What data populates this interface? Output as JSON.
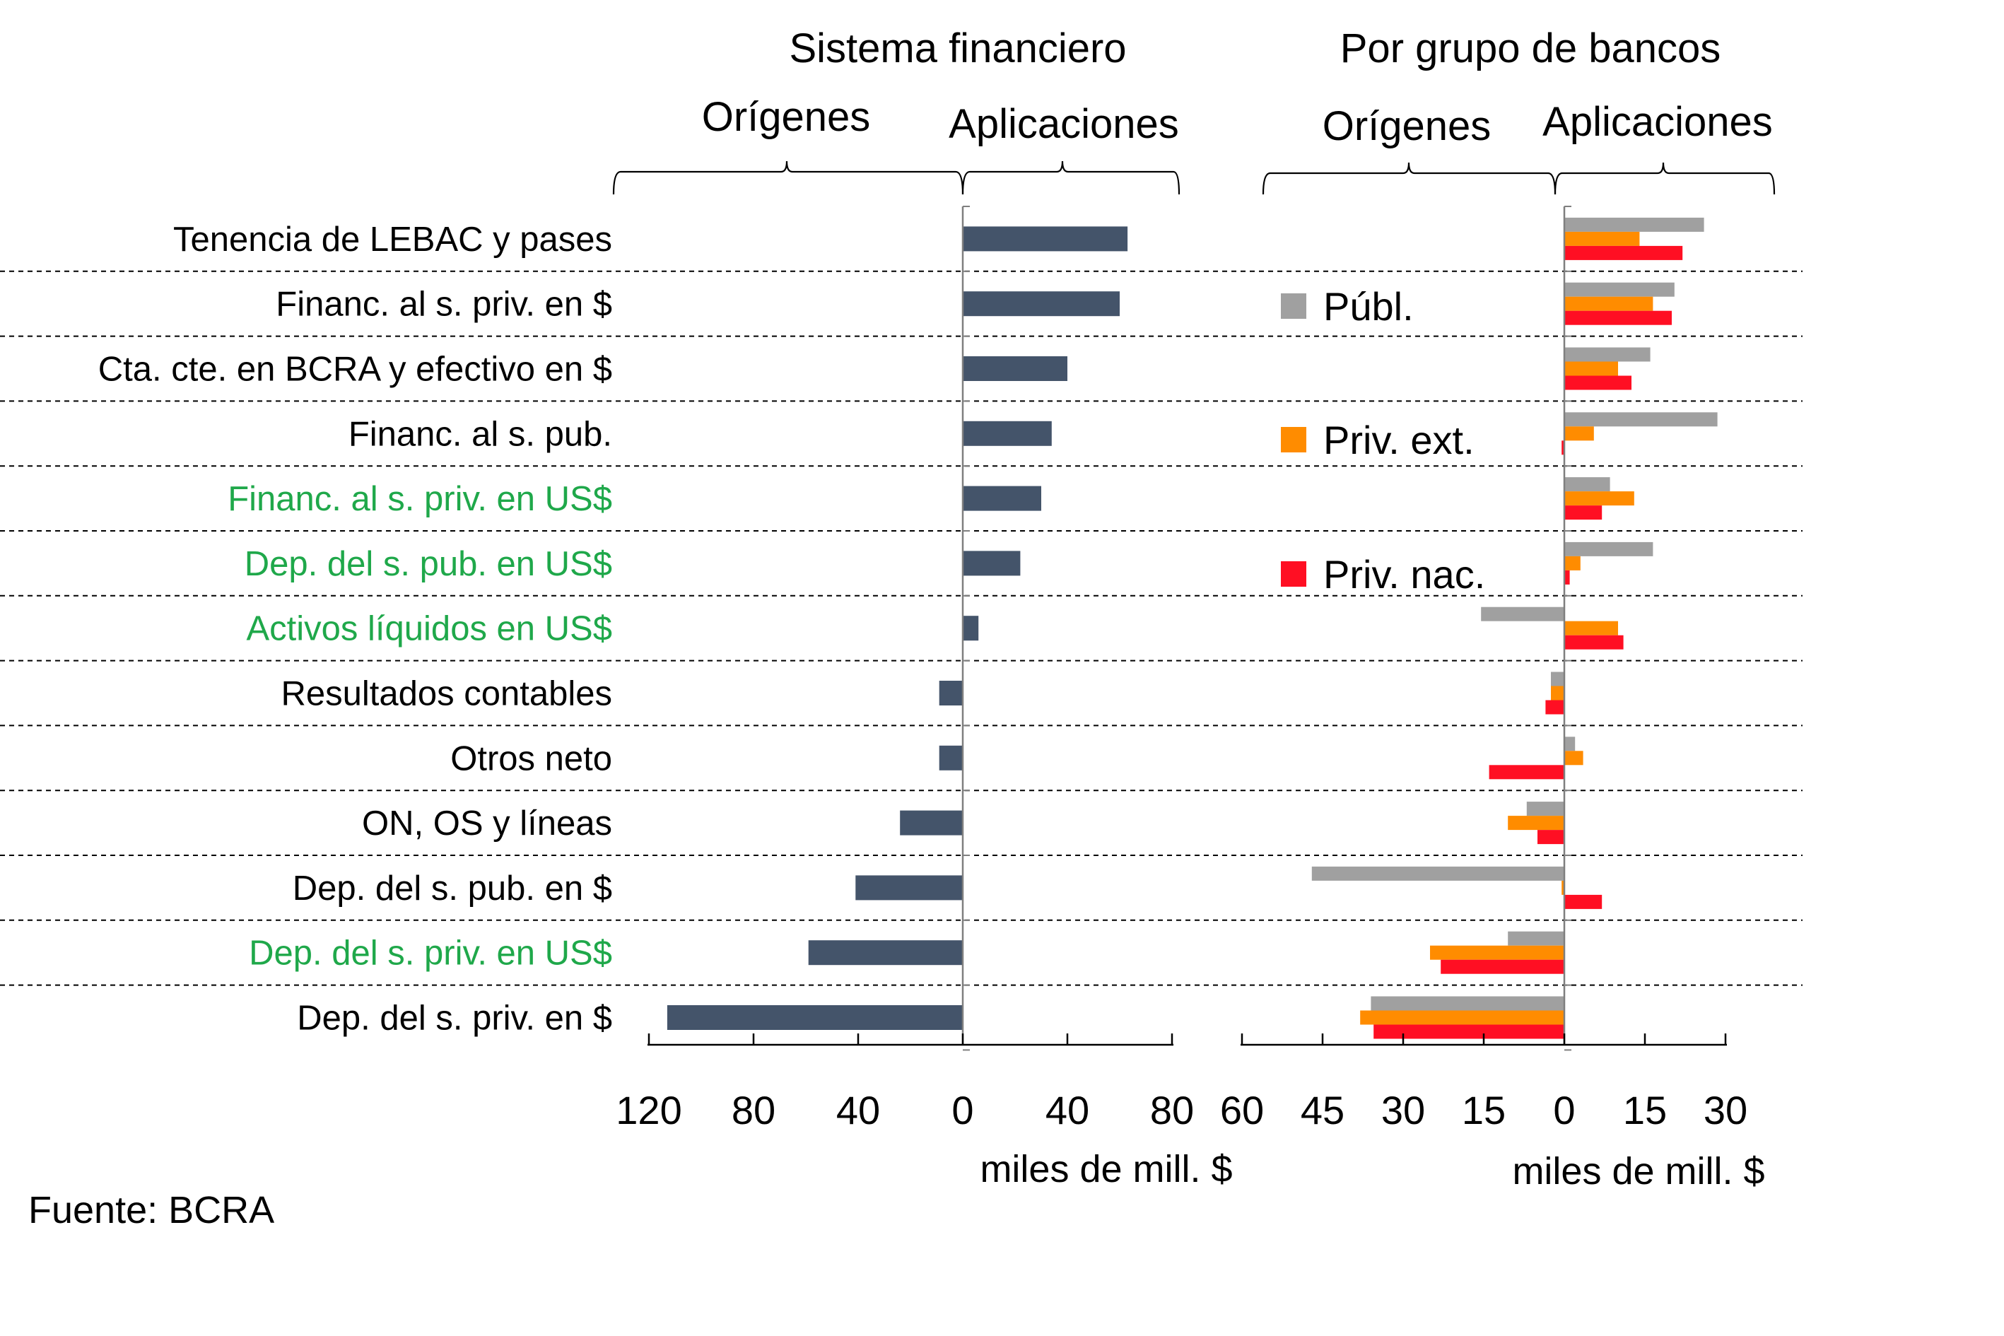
{
  "chart_data": [
    {
      "type": "bar",
      "orientation": "horizontal",
      "title": "Sistema financiero",
      "origins_label": "Orígenes",
      "applications_label": "Aplicaciones",
      "xlabel": "miles de mill. $",
      "xlim": [
        -120,
        80
      ],
      "xticks": [
        -120,
        -80,
        -40,
        0,
        40,
        80
      ],
      "xtick_labels": [
        "120",
        "80",
        "40",
        "0",
        "40",
        "80"
      ],
      "categories": [
        "Tenencia de LEBAC y pases",
        "Financ. al s. priv. en $",
        "Cta. cte. en BCRA y efectivo en $",
        "Financ. al s. pub.",
        "Financ. al s. priv. en US$",
        "Dep. del s. pub. en US$",
        "Activos líquidos en US$",
        "Resultados contables",
        "Otros neto",
        "ON, OS y líneas",
        "Dep. del s. pub. en $",
        "Dep. del s. priv. en US$",
        "Dep. del s. priv. en $"
      ],
      "category_colors": [
        "#000000",
        "#000000",
        "#000000",
        "#000000",
        "#1fa84a",
        "#1fa84a",
        "#1fa84a",
        "#000000",
        "#000000",
        "#000000",
        "#000000",
        "#1fa84a",
        "#000000"
      ],
      "series": [
        {
          "name": "Sistema financiero",
          "color": "#44546a",
          "values": [
            63,
            60,
            40,
            34,
            30,
            22,
            6,
            -9,
            -9,
            -24,
            -41,
            -59,
            -113
          ]
        }
      ]
    },
    {
      "type": "bar",
      "orientation": "horizontal",
      "title": "Por grupo de bancos",
      "origins_label": "Orígenes",
      "applications_label": "Aplicaciones",
      "xlabel": "miles de mill. $",
      "xlim": [
        -60,
        30
      ],
      "xticks": [
        -60,
        -45,
        -30,
        -15,
        0,
        15,
        30
      ],
      "xtick_labels": [
        "60",
        "45",
        "30",
        "15",
        "0",
        "15",
        "30"
      ],
      "categories": [
        "Tenencia de LEBAC y pases",
        "Financ. al s. priv. en $",
        "Cta. cte. en BCRA y efectivo en $",
        "Financ. al s. pub.",
        "Financ. al s. priv. en US$",
        "Dep. del s. pub. en US$",
        "Activos líquidos en US$",
        "Resultados contables",
        "Otros neto",
        "ON, OS y líneas",
        "Dep. del s. pub. en $",
        "Dep. del s. priv. en US$",
        "Dep. del s. priv. en $"
      ],
      "series": [
        {
          "name": "Públ.",
          "color": "#a0a0a0",
          "values": [
            26,
            20.5,
            16,
            28.5,
            8.5,
            16.5,
            -15.5,
            -2.5,
            2,
            -7,
            -47,
            -10.5,
            -36
          ]
        },
        {
          "name": "Priv. ext.",
          "color": "#ff8c00",
          "values": [
            14,
            16.5,
            10,
            5.5,
            13,
            3,
            10,
            -2.5,
            3.5,
            -10.5,
            -0.5,
            -25,
            -38
          ]
        },
        {
          "name": "Priv. nac.",
          "color": "#ff0f23",
          "values": [
            22,
            20,
            12.5,
            -0.5,
            7,
            1,
            11,
            -3.5,
            -14,
            -5,
            7,
            -23,
            -35.5
          ]
        }
      ]
    }
  ],
  "source": "Fuente: BCRA"
}
